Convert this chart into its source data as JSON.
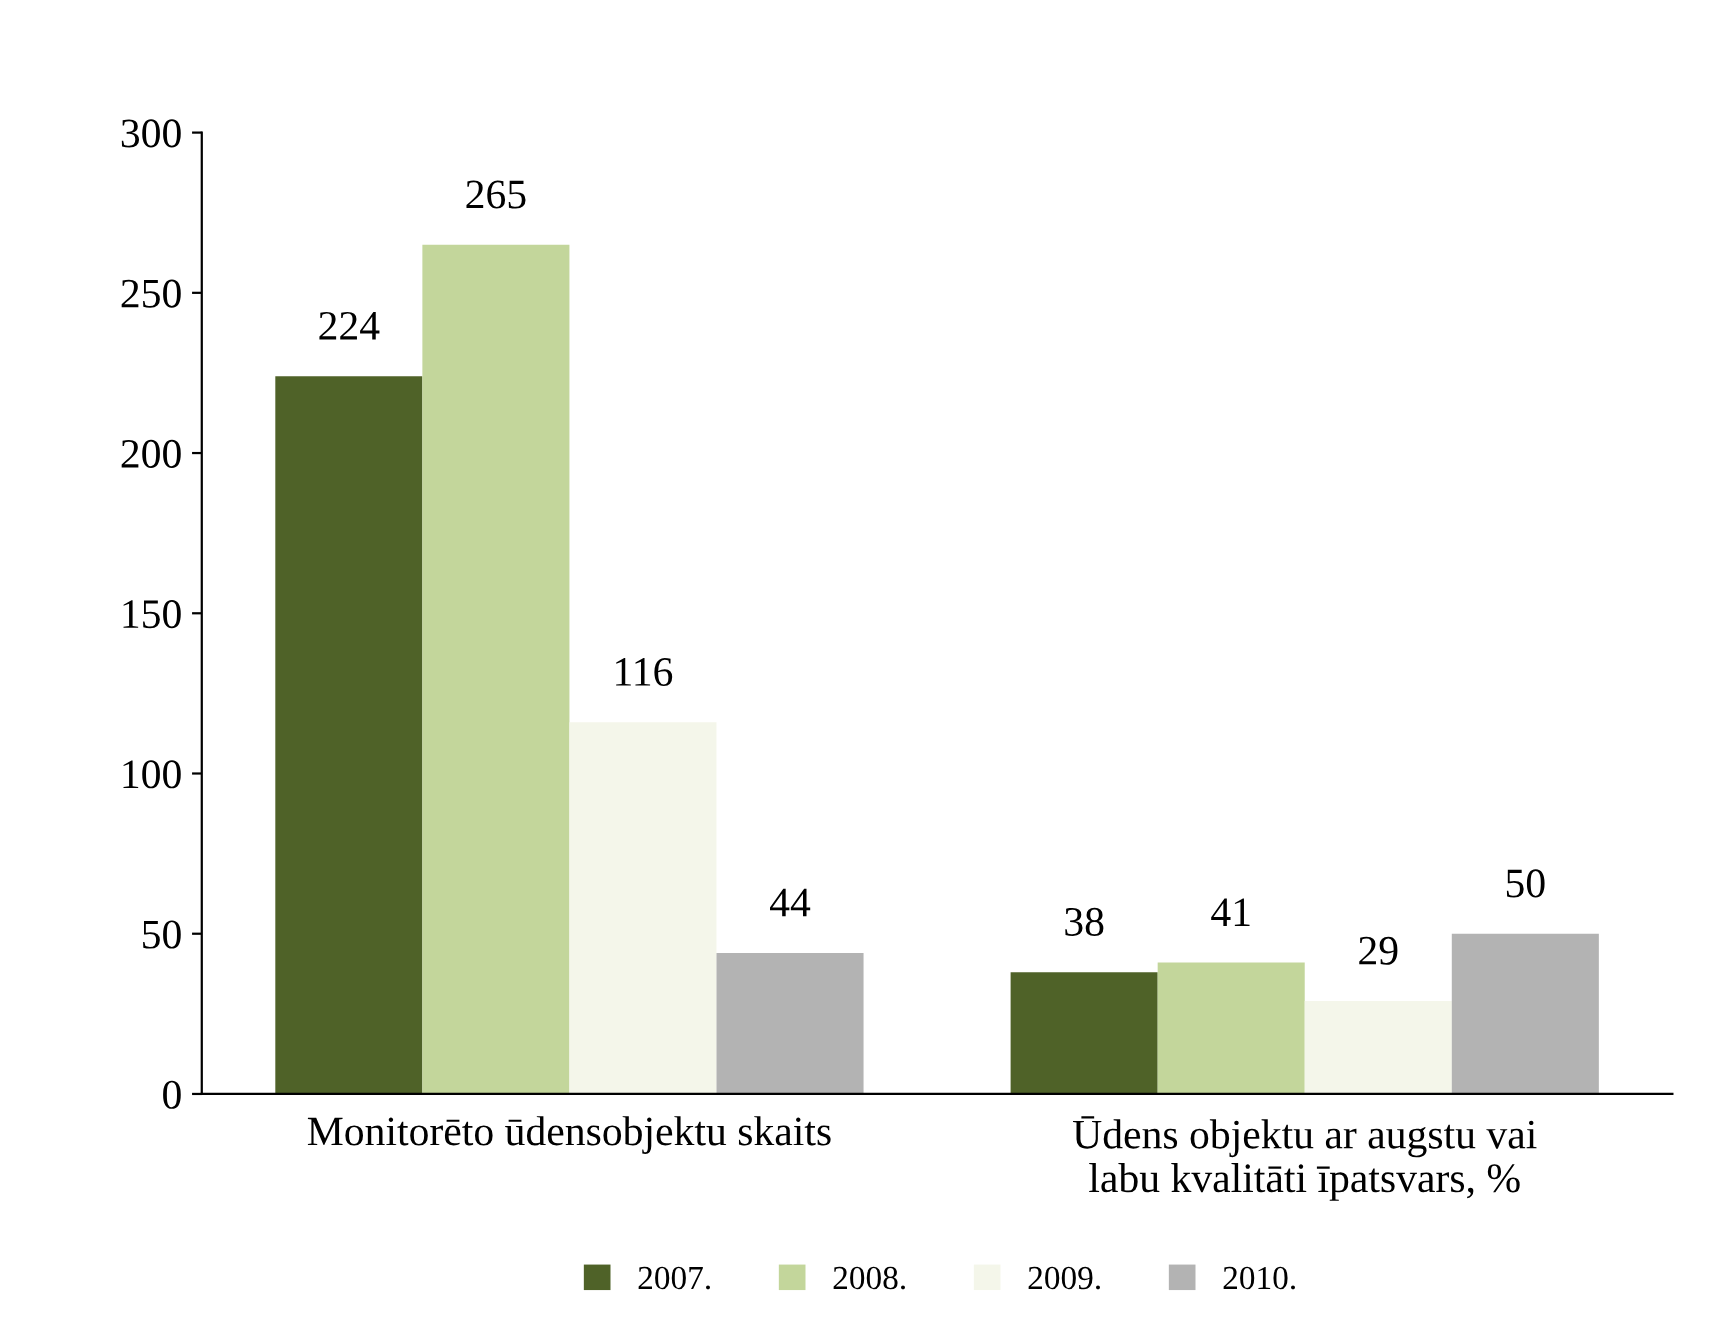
{
  "chart_data": {
    "type": "bar",
    "categories": [
      "Monitorēto ūdensobjektu skaits",
      "Ūdens objektu ar augstu vai\nlabu kvalitāti īpatsvars, %"
    ],
    "series": [
      {
        "name": "2007.",
        "color": "#4f6228",
        "values": [
          224,
          38
        ]
      },
      {
        "name": "2008.",
        "color": "#c3d69b",
        "values": [
          265,
          41
        ]
      },
      {
        "name": "2009.",
        "color": "#f4f6ea",
        "values": [
          116,
          29
        ]
      },
      {
        "name": "2010.",
        "color": "#b3b3b3",
        "values": [
          44,
          50
        ]
      }
    ],
    "ylim": [
      0,
      300
    ],
    "yticks": [
      0,
      50,
      100,
      150,
      200,
      250,
      300
    ],
    "grid": false,
    "legend": "bottom",
    "data_labels": true
  }
}
